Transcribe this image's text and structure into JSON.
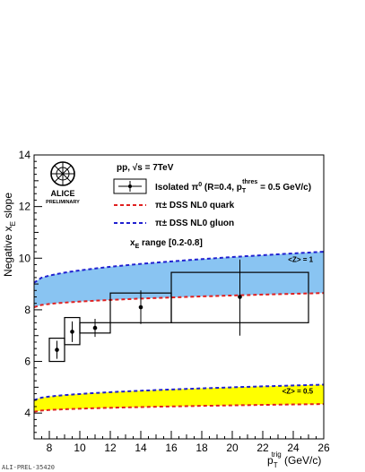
{
  "chart_data": {
    "type": "scatter",
    "ylabel_main": "Negative x",
    "ylabel_sub": "E",
    "ylabel_suffix": " slope",
    "xlabel_main": "p",
    "xlabel_sub": "T",
    "xlabel_sup": "trig",
    "xlabel_suffix": " (GeV/c)",
    "xlim": [
      7,
      26
    ],
    "ylim": [
      3,
      14
    ],
    "xticks": [
      8,
      10,
      12,
      14,
      16,
      18,
      20,
      22,
      24,
      26
    ],
    "yticks": [
      4,
      6,
      8,
      10,
      12,
      14
    ],
    "data_series": {
      "name": "Isolated π0 (R=0.4, pT thres = 0.5 GeV/c)",
      "points": [
        {
          "x": 8.5,
          "y": 6.45,
          "xlow": 8.0,
          "xhigh": 9.0,
          "ylow": 6.1,
          "yhigh": 6.8,
          "sys_low": 6.0,
          "sys_high": 6.9
        },
        {
          "x": 9.5,
          "y": 7.15,
          "xlow": 9.0,
          "xhigh": 10.0,
          "ylow": 6.75,
          "yhigh": 7.55,
          "sys_low": 6.65,
          "sys_high": 7.7
        },
        {
          "x": 11.0,
          "y": 7.3,
          "xlow": 10.0,
          "xhigh": 12.0,
          "ylow": 6.95,
          "yhigh": 7.65,
          "sys_low": 7.1,
          "sys_high": 7.5
        },
        {
          "x": 14.0,
          "y": 8.1,
          "xlow": 12.0,
          "xhigh": 16.0,
          "ylow": 7.45,
          "yhigh": 8.75,
          "sys_low": 7.5,
          "sys_high": 8.65
        },
        {
          "x": 20.5,
          "y": 8.5,
          "xlow": 16.0,
          "xhigh": 25.0,
          "ylow": 7.0,
          "yhigh": 9.95,
          "sys_low": 7.5,
          "sys_high": 9.45
        }
      ]
    },
    "bands": [
      {
        "name": "<Z> = 1",
        "fill": "#89c4f2",
        "x": [
          7,
          26
        ],
        "quark_y": [
          8.1,
          8.65
        ],
        "gluon_y": [
          9.05,
          10.25
        ]
      },
      {
        "name": "<Z> = 0.5",
        "fill": "#ffff00",
        "x": [
          7,
          26
        ],
        "quark_y": [
          4.05,
          4.35
        ],
        "gluon_y": [
          4.5,
          5.1
        ]
      }
    ],
    "curves": {
      "quark": {
        "name": "π± DSS NL0 quark",
        "color": "#e02020"
      },
      "gluon": {
        "name": "π± DSS NL0 gluon",
        "color": "#2020d0"
      }
    },
    "title": "pp, √s = 7TeV",
    "range_label_main": "x",
    "range_label_sub": "E",
    "range_label_suffix": " range [0.2-0.8]",
    "legend": {
      "data": "Isolated π0 (R=0.4, pT thres = 0.5 GeV/c)",
      "data_parts": [
        "Isolated π",
        "0",
        " (R=0.4, p",
        "T",
        "thres",
        " = 0.5 GeV/c)"
      ],
      "quark": "π± DSS NL0 quark",
      "gluon": "π± DSS NL0 gluon"
    },
    "logo": {
      "line1": "ALICE",
      "line2": "PRELIMINARY"
    },
    "footer": "ALI-PREL-35420"
  }
}
